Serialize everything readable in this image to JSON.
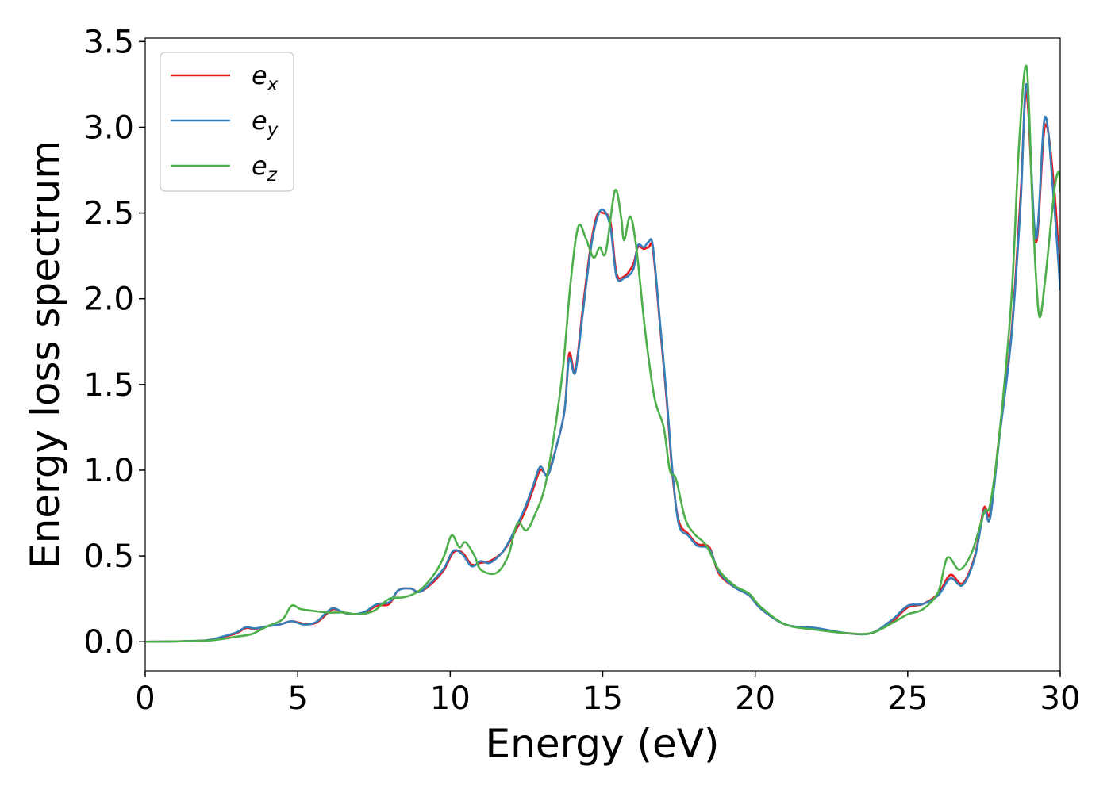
{
  "chart_data": {
    "type": "line",
    "xlabel": "Energy (eV)",
    "ylabel": "Energy loss spectrum",
    "xlim": [
      0,
      30
    ],
    "ylim": [
      -0.17,
      3.52
    ],
    "xticks": [
      0,
      5,
      10,
      15,
      20,
      25,
      30
    ],
    "yticks": [
      0.0,
      0.5,
      1.0,
      1.5,
      2.0,
      2.5,
      3.0,
      3.5
    ],
    "grid": false,
    "legend_position": "top-left",
    "series": [
      {
        "name": "ex",
        "base": "e",
        "sub": "x",
        "color": "#e41a1c",
        "points": [
          [
            0,
            0
          ],
          [
            1,
            0.002
          ],
          [
            2,
            0.008
          ],
          [
            2.5,
            0.025
          ],
          [
            3,
            0.05
          ],
          [
            3.3,
            0.08
          ],
          [
            3.6,
            0.075
          ],
          [
            4,
            0.09
          ],
          [
            4.4,
            0.1
          ],
          [
            4.8,
            0.12
          ],
          [
            5.2,
            0.105
          ],
          [
            5.6,
            0.11
          ],
          [
            6,
            0.17
          ],
          [
            6.2,
            0.19
          ],
          [
            6.5,
            0.17
          ],
          [
            6.8,
            0.16
          ],
          [
            7.2,
            0.17
          ],
          [
            7.6,
            0.21
          ],
          [
            8,
            0.22
          ],
          [
            8.3,
            0.3
          ],
          [
            8.7,
            0.31
          ],
          [
            9,
            0.29
          ],
          [
            9.4,
            0.34
          ],
          [
            9.8,
            0.42
          ],
          [
            10.1,
            0.52
          ],
          [
            10.4,
            0.52
          ],
          [
            10.7,
            0.45
          ],
          [
            11,
            0.46
          ],
          [
            11.3,
            0.47
          ],
          [
            11.7,
            0.52
          ],
          [
            12,
            0.6
          ],
          [
            12.4,
            0.74
          ],
          [
            12.7,
            0.88
          ],
          [
            12.95,
            1.0
          ],
          [
            13.2,
            0.98
          ],
          [
            13.5,
            1.15
          ],
          [
            13.75,
            1.35
          ],
          [
            13.9,
            1.68
          ],
          [
            14.1,
            1.58
          ],
          [
            14.35,
            1.95
          ],
          [
            14.6,
            2.3
          ],
          [
            14.8,
            2.48
          ],
          [
            15.0,
            2.5
          ],
          [
            15.25,
            2.45
          ],
          [
            15.45,
            2.15
          ],
          [
            15.7,
            2.13
          ],
          [
            16.0,
            2.2
          ],
          [
            16.15,
            2.3
          ],
          [
            16.35,
            2.29
          ],
          [
            16.5,
            2.3
          ],
          [
            16.65,
            2.28
          ],
          [
            16.9,
            1.8
          ],
          [
            17.1,
            1.4
          ],
          [
            17.3,
            0.95
          ],
          [
            17.5,
            0.7
          ],
          [
            17.8,
            0.63
          ],
          [
            18.1,
            0.57
          ],
          [
            18.5,
            0.55
          ],
          [
            18.8,
            0.4
          ],
          [
            19.3,
            0.32
          ],
          [
            19.8,
            0.27
          ],
          [
            20.2,
            0.19
          ],
          [
            21,
            0.1
          ],
          [
            22,
            0.075
          ],
          [
            23,
            0.05
          ],
          [
            23.8,
            0.05
          ],
          [
            24.5,
            0.12
          ],
          [
            25,
            0.2
          ],
          [
            25.5,
            0.22
          ],
          [
            26,
            0.28
          ],
          [
            26.4,
            0.39
          ],
          [
            26.8,
            0.34
          ],
          [
            27.2,
            0.5
          ],
          [
            27.5,
            0.78
          ],
          [
            27.7,
            0.75
          ],
          [
            28,
            1.2
          ],
          [
            28.4,
            1.8
          ],
          [
            28.7,
            2.6
          ],
          [
            28.9,
            3.2
          ],
          [
            29.2,
            2.33
          ],
          [
            29.5,
            3.01
          ],
          [
            29.8,
            2.65
          ],
          [
            30,
            2.1
          ]
        ]
      },
      {
        "name": "ey",
        "base": "e",
        "sub": "y",
        "color": "#377eb8",
        "points": [
          [
            0,
            0
          ],
          [
            1,
            0.002
          ],
          [
            2,
            0.008
          ],
          [
            2.5,
            0.028
          ],
          [
            3,
            0.055
          ],
          [
            3.3,
            0.085
          ],
          [
            3.6,
            0.078
          ],
          [
            4,
            0.09
          ],
          [
            4.4,
            0.1
          ],
          [
            4.8,
            0.12
          ],
          [
            5.2,
            0.1
          ],
          [
            5.6,
            0.115
          ],
          [
            6,
            0.18
          ],
          [
            6.2,
            0.195
          ],
          [
            6.5,
            0.17
          ],
          [
            6.8,
            0.16
          ],
          [
            7.2,
            0.175
          ],
          [
            7.6,
            0.22
          ],
          [
            8,
            0.23
          ],
          [
            8.3,
            0.3
          ],
          [
            8.7,
            0.31
          ],
          [
            9,
            0.29
          ],
          [
            9.4,
            0.35
          ],
          [
            9.8,
            0.43
          ],
          [
            10.1,
            0.53
          ],
          [
            10.4,
            0.51
          ],
          [
            10.7,
            0.44
          ],
          [
            11,
            0.47
          ],
          [
            11.3,
            0.46
          ],
          [
            11.7,
            0.52
          ],
          [
            12,
            0.61
          ],
          [
            12.4,
            0.76
          ],
          [
            12.7,
            0.9
          ],
          [
            12.95,
            1.02
          ],
          [
            13.2,
            0.97
          ],
          [
            13.5,
            1.15
          ],
          [
            13.75,
            1.35
          ],
          [
            13.9,
            1.65
          ],
          [
            14.1,
            1.57
          ],
          [
            14.35,
            1.92
          ],
          [
            14.6,
            2.28
          ],
          [
            14.8,
            2.46
          ],
          [
            15.0,
            2.52
          ],
          [
            15.25,
            2.42
          ],
          [
            15.45,
            2.13
          ],
          [
            15.7,
            2.12
          ],
          [
            16.0,
            2.17
          ],
          [
            16.15,
            2.31
          ],
          [
            16.35,
            2.3
          ],
          [
            16.5,
            2.33
          ],
          [
            16.65,
            2.3
          ],
          [
            16.9,
            1.82
          ],
          [
            17.1,
            1.42
          ],
          [
            17.3,
            0.97
          ],
          [
            17.5,
            0.68
          ],
          [
            17.8,
            0.62
          ],
          [
            18.1,
            0.56
          ],
          [
            18.5,
            0.54
          ],
          [
            18.8,
            0.41
          ],
          [
            19.3,
            0.32
          ],
          [
            19.8,
            0.27
          ],
          [
            20.2,
            0.19
          ],
          [
            21,
            0.1
          ],
          [
            22,
            0.08
          ],
          [
            23,
            0.05
          ],
          [
            23.8,
            0.05
          ],
          [
            24.5,
            0.13
          ],
          [
            25,
            0.21
          ],
          [
            25.5,
            0.22
          ],
          [
            26,
            0.27
          ],
          [
            26.4,
            0.37
          ],
          [
            26.8,
            0.33
          ],
          [
            27.2,
            0.49
          ],
          [
            27.5,
            0.76
          ],
          [
            27.7,
            0.72
          ],
          [
            28,
            1.18
          ],
          [
            28.4,
            1.78
          ],
          [
            28.7,
            2.55
          ],
          [
            28.9,
            3.25
          ],
          [
            29.2,
            2.35
          ],
          [
            29.5,
            3.06
          ],
          [
            29.8,
            2.55
          ],
          [
            30,
            2.05
          ]
        ]
      },
      {
        "name": "ez",
        "base": "e",
        "sub": "z",
        "color": "#4daf4a",
        "points": [
          [
            0,
            0
          ],
          [
            1,
            0.002
          ],
          [
            2,
            0.006
          ],
          [
            2.5,
            0.015
          ],
          [
            3,
            0.03
          ],
          [
            3.5,
            0.045
          ],
          [
            4,
            0.09
          ],
          [
            4.5,
            0.13
          ],
          [
            4.8,
            0.21
          ],
          [
            5.1,
            0.19
          ],
          [
            5.5,
            0.18
          ],
          [
            6,
            0.17
          ],
          [
            6.5,
            0.17
          ],
          [
            7,
            0.16
          ],
          [
            7.5,
            0.18
          ],
          [
            8,
            0.25
          ],
          [
            8.5,
            0.26
          ],
          [
            9,
            0.3
          ],
          [
            9.5,
            0.4
          ],
          [
            9.8,
            0.5
          ],
          [
            10.05,
            0.62
          ],
          [
            10.3,
            0.55
          ],
          [
            10.5,
            0.58
          ],
          [
            10.8,
            0.5
          ],
          [
            11,
            0.42
          ],
          [
            11.5,
            0.4
          ],
          [
            11.9,
            0.5
          ],
          [
            12.2,
            0.69
          ],
          [
            12.5,
            0.65
          ],
          [
            12.8,
            0.75
          ],
          [
            13.1,
            0.9
          ],
          [
            13.4,
            1.2
          ],
          [
            13.7,
            1.6
          ],
          [
            13.95,
            2.1
          ],
          [
            14.2,
            2.42
          ],
          [
            14.45,
            2.35
          ],
          [
            14.7,
            2.24
          ],
          [
            14.9,
            2.3
          ],
          [
            15.1,
            2.27
          ],
          [
            15.4,
            2.63
          ],
          [
            15.6,
            2.48
          ],
          [
            15.7,
            2.34
          ],
          [
            15.9,
            2.48
          ],
          [
            16.1,
            2.3
          ],
          [
            16.4,
            1.8
          ],
          [
            16.7,
            1.42
          ],
          [
            17.0,
            1.25
          ],
          [
            17.2,
            1.0
          ],
          [
            17.4,
            0.95
          ],
          [
            17.7,
            0.72
          ],
          [
            18.0,
            0.63
          ],
          [
            18.4,
            0.56
          ],
          [
            18.8,
            0.42
          ],
          [
            19.3,
            0.33
          ],
          [
            19.8,
            0.28
          ],
          [
            20.2,
            0.2
          ],
          [
            21,
            0.1
          ],
          [
            22,
            0.07
          ],
          [
            23,
            0.05
          ],
          [
            23.8,
            0.05
          ],
          [
            24.5,
            0.11
          ],
          [
            25,
            0.16
          ],
          [
            25.5,
            0.19
          ],
          [
            26,
            0.29
          ],
          [
            26.3,
            0.49
          ],
          [
            26.7,
            0.42
          ],
          [
            27.1,
            0.52
          ],
          [
            27.5,
            0.75
          ],
          [
            27.7,
            0.8
          ],
          [
            28,
            1.2
          ],
          [
            28.4,
            2.0
          ],
          [
            28.65,
            2.9
          ],
          [
            28.9,
            3.35
          ],
          [
            29.1,
            2.5
          ],
          [
            29.3,
            1.91
          ],
          [
            29.5,
            2.1
          ],
          [
            29.8,
            2.62
          ],
          [
            29.95,
            2.74
          ],
          [
            30,
            2.62
          ]
        ]
      }
    ]
  }
}
